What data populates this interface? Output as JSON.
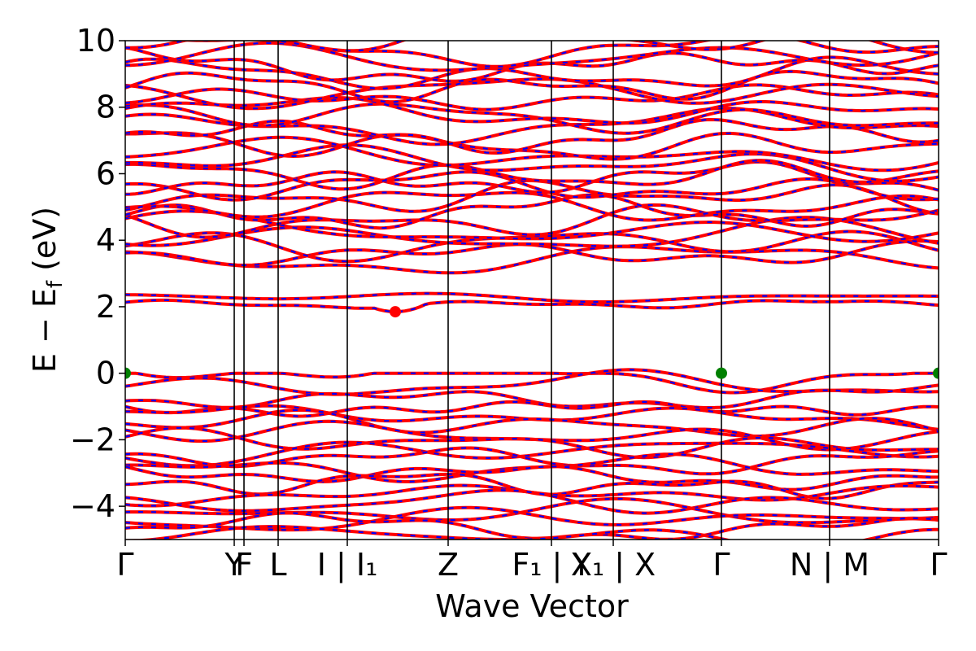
{
  "chart_data": {
    "type": "line",
    "title": "",
    "xlabel": "Wave Vector",
    "ylabel": "E − E",
    "ylabel_sub": "f",
    "ylabel_unit": " (eV)",
    "ylim": [
      -5,
      10
    ],
    "yticks": [
      -4,
      -2,
      0,
      2,
      4,
      6,
      8,
      10
    ],
    "ytick_labels": [
      "−4",
      "−2",
      "0",
      "2",
      "4",
      "6",
      "8",
      "10"
    ],
    "xlim": [
      0,
      1
    ],
    "kpoints": [
      {
        "x": 0.0,
        "label": "Γ"
      },
      {
        "x": 0.134,
        "label": "Y"
      },
      {
        "x": 0.146,
        "label": "F"
      },
      {
        "x": 0.188,
        "label": "L"
      },
      {
        "x": 0.273,
        "label": "I | I₁"
      },
      {
        "x": 0.397,
        "label": "Z"
      },
      {
        "x": 0.524,
        "label": "F₁ | Y"
      },
      {
        "x": 0.6,
        "label": "X₁ | X"
      },
      {
        "x": 0.733,
        "label": "Γ"
      },
      {
        "x": 0.866,
        "label": "N | M"
      },
      {
        "x": 1.0,
        "label": "Γ"
      }
    ],
    "grid": false,
    "legend": "none",
    "series_styles": [
      {
        "color": "#ff0000",
        "style": "solid"
      },
      {
        "color": "#0000ff",
        "style": "dashed"
      }
    ],
    "valence_band_levels": [
      0.0,
      -0.35,
      -0.7,
      -1.05,
      -1.3,
      -1.55,
      -1.85,
      -2.1,
      -2.35,
      -2.6,
      -2.85,
      -3.05,
      -3.35,
      -3.6,
      -3.9,
      -4.2,
      -4.4,
      -4.65,
      -4.9
    ],
    "conduction_band_levels": [
      2.1,
      2.3
    ],
    "upper_band_levels": [
      3.4,
      3.65,
      3.9,
      4.1,
      4.3,
      4.6,
      4.8,
      5.05,
      5.3,
      5.55,
      5.8,
      6.05,
      6.3,
      6.55,
      6.9,
      7.2,
      7.45,
      7.7,
      7.95,
      8.2,
      8.45,
      8.7,
      8.95,
      9.25,
      9.5,
      9.8,
      10.0
    ],
    "markers": [
      {
        "x": 0.0,
        "y": 0.0,
        "color": "#008000",
        "name": "vbm-marker"
      },
      {
        "x": 0.733,
        "y": 0.0,
        "color": "#008000",
        "name": "vbm-marker"
      },
      {
        "x": 1.0,
        "y": 0.0,
        "color": "#008000",
        "name": "vbm-marker"
      },
      {
        "x": 0.332,
        "y": 1.85,
        "color": "#ff0000",
        "name": "cbm-marker"
      }
    ]
  }
}
